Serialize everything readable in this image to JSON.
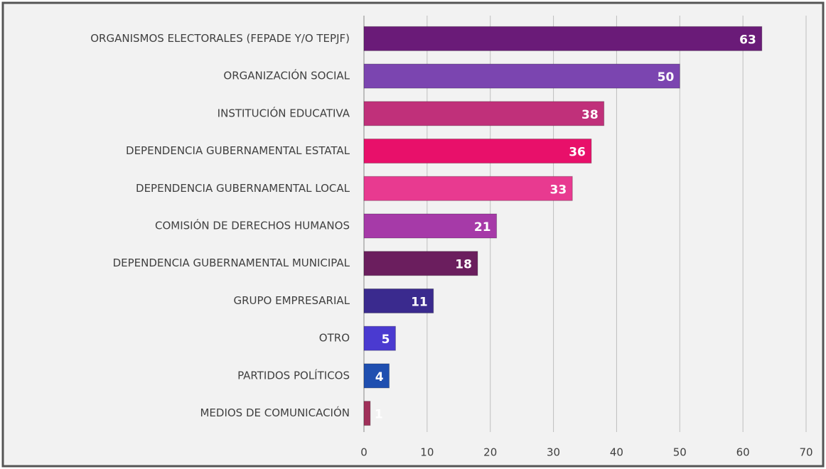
{
  "chart_data": {
    "type": "bar",
    "orientation": "horizontal",
    "categories": [
      "ORGANISMOS ELECTORALES (FEPADE Y/O TEPJF)",
      "ORGANIZACIÓN SOCIAL",
      "INSTITUCIÓN EDUCATIVA",
      "DEPENDENCIA GUBERNAMENTAL ESTATAL",
      "DEPENDENCIA GUBERNAMENTAL LOCAL",
      "COMISIÓN DE DERECHOS HUMANOS",
      "DEPENDENCIA GUBERNAMENTAL MUNICIPAL",
      "GRUPO EMPRESARIAL",
      "OTRO",
      "PARTIDOS POLÍTICOS",
      "MEDIOS DE COMUNICACIÓN"
    ],
    "values": [
      63,
      50,
      38,
      36,
      33,
      21,
      18,
      11,
      5,
      4,
      1
    ],
    "colors": [
      "#6a1b78",
      "#7b45b0",
      "#c0307a",
      "#e8106a",
      "#e83a90",
      "#a63aa8",
      "#6b1e5e",
      "#3a2a8e",
      "#4a3ad0",
      "#1f4fb0",
      "#a0305a"
    ],
    "xlim": [
      0,
      70
    ],
    "xticks": [
      0,
      10,
      20,
      30,
      40,
      50,
      60,
      70
    ],
    "grid": true
  }
}
